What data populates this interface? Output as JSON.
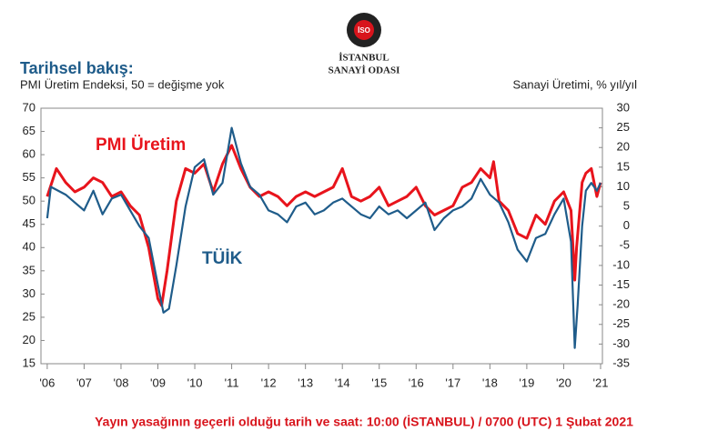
{
  "header": {
    "org_line1": "İSTANBUL",
    "org_line2": "SANAYİ ODASI",
    "logo": "İSO"
  },
  "footer": "Yayın yasağının geçerli olduğu tarih ve saat: 10:00 (İSTANBUL) / 0700 (UTC) 1 Şubat 2021",
  "chart_data": {
    "type": "line",
    "title": "Tarihsel bakış:",
    "subtitle": "PMI Üretim Endeksi, 50 = değişme yok",
    "y2_label": "Sanayi Üretimi, % yıl/yıl",
    "xlim": [
      2005.83,
      2021.05
    ],
    "xticks": [
      {
        "value": 2006,
        "label": "'06"
      },
      {
        "value": 2007,
        "label": "'07"
      },
      {
        "value": 2008,
        "label": "'08"
      },
      {
        "value": 2009,
        "label": "'09"
      },
      {
        "value": 2010,
        "label": "'10"
      },
      {
        "value": 2011,
        "label": "'11"
      },
      {
        "value": 2012,
        "label": "'12"
      },
      {
        "value": 2013,
        "label": "'13"
      },
      {
        "value": 2014,
        "label": "'14"
      },
      {
        "value": 2015,
        "label": "'15"
      },
      {
        "value": 2016,
        "label": "'16"
      },
      {
        "value": 2017,
        "label": "'17"
      },
      {
        "value": 2018,
        "label": "'18"
      },
      {
        "value": 2019,
        "label": "'19"
      },
      {
        "value": 2020,
        "label": "'20"
      },
      {
        "value": 2021,
        "label": "'21"
      }
    ],
    "ylim": [
      15,
      70
    ],
    "yticks": [
      15,
      20,
      25,
      30,
      35,
      40,
      45,
      50,
      55,
      60,
      65,
      70
    ],
    "y2lim": [
      -35,
      30
    ],
    "y2ticks": [
      -35,
      -30,
      -25,
      -20,
      -15,
      -10,
      -5,
      0,
      5,
      10,
      15,
      20,
      25,
      30
    ],
    "grid": false,
    "series": [
      {
        "name": "PMI Üretim",
        "color": "#e8141c",
        "axis": "y",
        "x": [
          2006.0,
          2006.25,
          2006.5,
          2006.75,
          2007.0,
          2007.25,
          2007.5,
          2007.75,
          2008.0,
          2008.25,
          2008.5,
          2008.75,
          2009.0,
          2009.1,
          2009.25,
          2009.5,
          2009.75,
          2010.0,
          2010.25,
          2010.5,
          2010.75,
          2011.0,
          2011.25,
          2011.5,
          2011.75,
          2012.0,
          2012.25,
          2012.5,
          2012.75,
          2013.0,
          2013.25,
          2013.5,
          2013.75,
          2014.0,
          2014.25,
          2014.5,
          2014.75,
          2015.0,
          2015.25,
          2015.5,
          2015.75,
          2016.0,
          2016.25,
          2016.5,
          2016.75,
          2017.0,
          2017.25,
          2017.5,
          2017.75,
          2018.0,
          2018.1,
          2018.25,
          2018.5,
          2018.75,
          2019.0,
          2019.25,
          2019.5,
          2019.75,
          2020.0,
          2020.2,
          2020.3,
          2020.35,
          2020.5,
          2020.6,
          2020.75,
          2020.9,
          2021.0
        ],
        "values": [
          51,
          57,
          54,
          52,
          53,
          55,
          54,
          51,
          52,
          49,
          47,
          40,
          29,
          27.5,
          35,
          50,
          57,
          56,
          58,
          52,
          58,
          62,
          57,
          53,
          51,
          52,
          51,
          49,
          51,
          52,
          51,
          52,
          53,
          57,
          51,
          50,
          51,
          53,
          49,
          50,
          51,
          53,
          49,
          47,
          48,
          49,
          53,
          54,
          57,
          55,
          58.5,
          50,
          48,
          43,
          42,
          47,
          45,
          50,
          52,
          48,
          33,
          40,
          54,
          56,
          57,
          51,
          54
        ]
      },
      {
        "name": "TÜİK",
        "color": "#1f5c8a",
        "axis": "y2",
        "x": [
          2006.0,
          2006.1,
          2006.5,
          2006.75,
          2007.0,
          2007.25,
          2007.5,
          2007.75,
          2008.0,
          2008.25,
          2008.5,
          2008.75,
          2009.0,
          2009.15,
          2009.3,
          2009.5,
          2009.75,
          2010.0,
          2010.25,
          2010.5,
          2010.75,
          2011.0,
          2011.25,
          2011.5,
          2011.75,
          2012.0,
          2012.25,
          2012.5,
          2012.75,
          2013.0,
          2013.25,
          2013.5,
          2013.75,
          2014.0,
          2014.25,
          2014.5,
          2014.75,
          2015.0,
          2015.25,
          2015.5,
          2015.75,
          2016.0,
          2016.25,
          2016.5,
          2016.75,
          2017.0,
          2017.25,
          2017.5,
          2017.75,
          2018.0,
          2018.25,
          2018.5,
          2018.75,
          2019.0,
          2019.25,
          2019.5,
          2019.75,
          2020.0,
          2020.2,
          2020.3,
          2020.38,
          2020.5,
          2020.6,
          2020.75,
          2020.9,
          2021.0
        ],
        "values": [
          2,
          10,
          8,
          6,
          4,
          9,
          3,
          7,
          8,
          4,
          0,
          -3,
          -15,
          -22,
          -21,
          -10,
          5,
          15,
          17,
          8,
          11,
          25,
          16,
          10,
          8,
          4,
          3,
          1,
          5,
          6,
          3,
          4,
          6,
          7,
          5,
          3,
          2,
          5,
          3,
          4,
          2,
          4,
          6,
          -1,
          2,
          4,
          5,
          7,
          12,
          8,
          6,
          1,
          -6,
          -9,
          -3,
          -2,
          3,
          7,
          -4,
          -31,
          -20,
          0,
          9,
          11,
          9,
          11
        ]
      }
    ]
  }
}
